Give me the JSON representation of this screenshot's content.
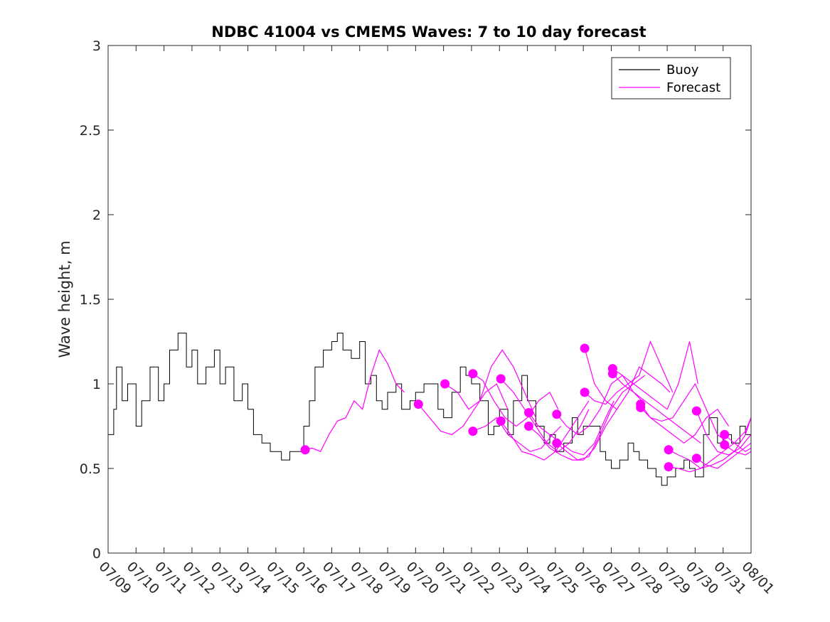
{
  "chart_data": {
    "type": "line",
    "title": "NDBC 41004 vs CMEMS Waves: 7 to 10 day forecast",
    "xlabel": "",
    "ylabel": "Wave height, m",
    "xlim": [
      "07/09",
      "08/01"
    ],
    "ylim": [
      0,
      3
    ],
    "grid": false,
    "legend_position": "top-right",
    "x_ticks": [
      "07/09",
      "07/10",
      "07/11",
      "07/12",
      "07/13",
      "07/14",
      "07/15",
      "07/16",
      "07/17",
      "07/18",
      "07/19",
      "07/20",
      "07/21",
      "07/22",
      "07/23",
      "07/24",
      "07/25",
      "07/26",
      "07/27",
      "07/28",
      "07/29",
      "07/30",
      "07/31",
      "08/01"
    ],
    "y_ticks": [
      "0",
      "0.5",
      "1",
      "1.5",
      "2",
      "2.5",
      "3"
    ],
    "legend": [
      {
        "label": "Buoy",
        "color": "#000000"
      },
      {
        "label": "Forecast",
        "color": "#ff00ff"
      }
    ],
    "buoy": {
      "name": "Buoy",
      "color": "#000000",
      "x_day": [
        0,
        0.2,
        0.3,
        0.5,
        0.7,
        1.0,
        1.2,
        1.5,
        1.8,
        2.0,
        2.2,
        2.5,
        2.8,
        3.0,
        3.2,
        3.5,
        3.8,
        4.0,
        4.2,
        4.5,
        4.8,
        5.0,
        5.2,
        5.5,
        5.8,
        6.0,
        6.2,
        6.5,
        6.7,
        7.0,
        7.2,
        7.4,
        7.7,
        8.0,
        8.2,
        8.4,
        8.7,
        9.0,
        9.2,
        9.4,
        9.6,
        9.8,
        10.0,
        10.3,
        10.5,
        10.8,
        11.0,
        11.3,
        11.5,
        11.8,
        12.0,
        12.3,
        12.6,
        12.8,
        13.0,
        13.3,
        13.6,
        13.8,
        14.0,
        14.3,
        14.5,
        14.8,
        15.0,
        15.3,
        15.6,
        15.8,
        16.0,
        16.3,
        16.6,
        16.8,
        17.0,
        17.3,
        17.6,
        17.8,
        18.0,
        18.3,
        18.6,
        18.8,
        19.0,
        19.3,
        19.6,
        19.8,
        20.0,
        20.3,
        20.6,
        20.8,
        21.0,
        21.3,
        21.5,
        21.8,
        22.0,
        22.3,
        22.6,
        22.8,
        23.0
      ],
      "y": [
        0.7,
        0.85,
        1.1,
        0.9,
        1.0,
        0.75,
        0.9,
        1.1,
        0.9,
        1.0,
        1.2,
        1.3,
        1.1,
        1.2,
        1.0,
        1.1,
        1.2,
        1.0,
        1.1,
        0.9,
        1.0,
        0.85,
        0.7,
        0.65,
        0.6,
        0.6,
        0.55,
        0.6,
        0.6,
        0.75,
        0.9,
        1.1,
        1.2,
        1.25,
        1.3,
        1.2,
        1.15,
        1.25,
        1.0,
        1.05,
        0.9,
        0.85,
        0.95,
        1.0,
        0.85,
        0.9,
        0.95,
        1.0,
        1.0,
        0.85,
        0.8,
        0.95,
        1.1,
        1.05,
        1.0,
        0.9,
        0.7,
        0.75,
        0.85,
        0.7,
        0.9,
        1.05,
        0.9,
        0.75,
        0.65,
        0.7,
        0.6,
        0.65,
        0.8,
        0.7,
        0.75,
        0.75,
        0.6,
        0.55,
        0.5,
        0.55,
        0.65,
        0.6,
        0.55,
        0.5,
        0.45,
        0.4,
        0.45,
        0.5,
        0.55,
        0.5,
        0.45,
        0.7,
        0.8,
        0.65,
        0.7,
        0.65,
        0.75,
        0.7,
        0.75
      ]
    },
    "forecast_series": [
      {
        "x_day": [
          7.05,
          7.3,
          7.6,
          7.9,
          8.2,
          8.5,
          8.8,
          9.1,
          9.4,
          9.7,
          10.0,
          10.3,
          10.6
        ],
        "y": [
          0.61,
          0.62,
          0.6,
          0.7,
          0.78,
          0.8,
          0.9,
          0.85,
          1.05,
          1.2,
          1.12,
          1.0,
          0.95
        ]
      },
      {
        "x_day": [
          11.1,
          11.5,
          11.9,
          12.3,
          12.7,
          13.1,
          13.5,
          13.9,
          14.3
        ],
        "y": [
          0.88,
          0.8,
          0.72,
          0.7,
          0.75,
          0.85,
          0.95,
          1.0,
          0.85
        ]
      },
      {
        "x_day": [
          12.05,
          12.5,
          12.9,
          13.3,
          13.7,
          14.1,
          14.5,
          14.9,
          15.3
        ],
        "y": [
          1.0,
          0.95,
          0.85,
          0.9,
          1.1,
          1.2,
          1.1,
          0.95,
          0.8
        ]
      },
      {
        "x_day": [
          13.05,
          13.4,
          13.8,
          14.2,
          14.6,
          15.0,
          15.4,
          15.8,
          16.1
        ],
        "y": [
          1.06,
          1.02,
          0.9,
          0.8,
          0.75,
          0.8,
          0.9,
          0.95,
          0.85
        ]
      },
      {
        "x_day": [
          13.05,
          13.5,
          13.9,
          14.3,
          14.7,
          15.1,
          15.5,
          15.9,
          16.2
        ],
        "y": [
          0.72,
          0.75,
          0.8,
          0.7,
          0.65,
          0.6,
          0.62,
          0.7,
          0.75
        ]
      },
      {
        "x_day": [
          14.05,
          14.5,
          14.9,
          15.3,
          15.7,
          16.1,
          16.5,
          16.9,
          17.2
        ],
        "y": [
          1.03,
          0.95,
          0.85,
          0.75,
          0.65,
          0.6,
          0.65,
          0.75,
          0.85
        ]
      },
      {
        "x_day": [
          14.05,
          14.4,
          14.8,
          15.2,
          15.6,
          16.0,
          16.4,
          16.8,
          17.2
        ],
        "y": [
          0.78,
          0.7,
          0.6,
          0.58,
          0.55,
          0.6,
          0.7,
          0.8,
          0.9
        ]
      },
      {
        "x_day": [
          15.05,
          15.4,
          15.8,
          16.2,
          16.6,
          17.0,
          17.4,
          17.8,
          18.1
        ],
        "y": [
          0.83,
          0.75,
          0.7,
          0.65,
          0.6,
          0.58,
          0.65,
          0.8,
          0.9
        ]
      },
      {
        "x_day": [
          15.05,
          15.4,
          15.8,
          16.2,
          16.6,
          17.0,
          17.4,
          17.8,
          18.2
        ],
        "y": [
          0.75,
          0.7,
          0.62,
          0.58,
          0.55,
          0.55,
          0.62,
          0.75,
          0.85
        ]
      },
      {
        "x_day": [
          16.05,
          16.4,
          16.8,
          17.2,
          17.6,
          18.0,
          18.4,
          18.8,
          19.1
        ],
        "y": [
          0.82,
          0.75,
          0.7,
          0.75,
          0.85,
          1.0,
          1.05,
          0.95,
          0.9
        ]
      },
      {
        "x_day": [
          16.05,
          16.4,
          16.8,
          17.2,
          17.6,
          18.0,
          18.4,
          18.8,
          19.2
        ],
        "y": [
          0.65,
          0.6,
          0.55,
          0.57,
          0.7,
          0.85,
          0.95,
          1.0,
          1.05
        ]
      },
      {
        "x_day": [
          17.05,
          17.4,
          17.8,
          18.2,
          18.6,
          19.0,
          19.4,
          19.8,
          20.1
        ],
        "y": [
          1.21,
          1.0,
          0.9,
          0.85,
          0.95,
          1.1,
          1.05,
          1.0,
          0.95
        ]
      },
      {
        "x_day": [
          17.05,
          17.4,
          17.8,
          18.2,
          18.6,
          19.0,
          19.4,
          19.8,
          20.2
        ],
        "y": [
          0.95,
          0.9,
          0.88,
          0.95,
          1.0,
          1.05,
          1.25,
          1.1,
          0.95
        ]
      },
      {
        "x_day": [
          18.05,
          18.4,
          18.8,
          19.2,
          19.6,
          20.0,
          20.4,
          20.8,
          21.1
        ],
        "y": [
          1.09,
          1.05,
          1.0,
          0.95,
          0.9,
          0.85,
          1.0,
          1.25,
          1.0
        ]
      },
      {
        "x_day": [
          18.05,
          18.4,
          18.8,
          19.2,
          19.6,
          20.0,
          20.4,
          20.8,
          21.2
        ],
        "y": [
          1.06,
          1.0,
          0.95,
          0.9,
          0.85,
          0.8,
          0.75,
          0.7,
          0.65
        ]
      },
      {
        "x_day": [
          19.05,
          19.4,
          19.8,
          20.2,
          20.6,
          21.0,
          21.4,
          21.8,
          22.2
        ],
        "y": [
          0.88,
          0.8,
          0.78,
          0.8,
          0.9,
          1.0,
          0.85,
          0.7,
          0.65
        ]
      },
      {
        "x_day": [
          19.05,
          19.4,
          19.8,
          20.2,
          20.6,
          21.0,
          21.4,
          21.8,
          22.2
        ],
        "y": [
          0.86,
          0.8,
          0.75,
          0.7,
          0.65,
          0.7,
          0.8,
          0.85,
          0.75
        ]
      },
      {
        "x_day": [
          20.05,
          20.4,
          20.8,
          21.2,
          21.6,
          22.0,
          22.4,
          22.8,
          23.0
        ],
        "y": [
          0.61,
          0.58,
          0.55,
          0.5,
          0.52,
          0.55,
          0.6,
          0.7,
          0.8
        ]
      },
      {
        "x_day": [
          20.05,
          20.4,
          20.8,
          21.2,
          21.6,
          22.0,
          22.4,
          22.8,
          23.0
        ],
        "y": [
          0.51,
          0.5,
          0.48,
          0.5,
          0.55,
          0.6,
          0.65,
          0.72,
          0.8
        ]
      },
      {
        "x_day": [
          21.05,
          21.4,
          21.8,
          22.2,
          22.6,
          23.0
        ],
        "y": [
          0.84,
          0.7,
          0.6,
          0.58,
          0.62,
          0.7
        ]
      },
      {
        "x_day": [
          21.05,
          21.4,
          21.8,
          22.2,
          22.6,
          23.0
        ],
        "y": [
          0.56,
          0.52,
          0.5,
          0.55,
          0.6,
          0.65
        ]
      },
      {
        "x_day": [
          22.05,
          22.4,
          22.8,
          23.0
        ],
        "y": [
          0.7,
          0.65,
          0.6,
          0.62
        ]
      },
      {
        "x_day": [
          22.05,
          22.4,
          22.8,
          23.0
        ],
        "y": [
          0.64,
          0.6,
          0.58,
          0.6
        ]
      }
    ],
    "forecast_color": "#ff00ff"
  }
}
